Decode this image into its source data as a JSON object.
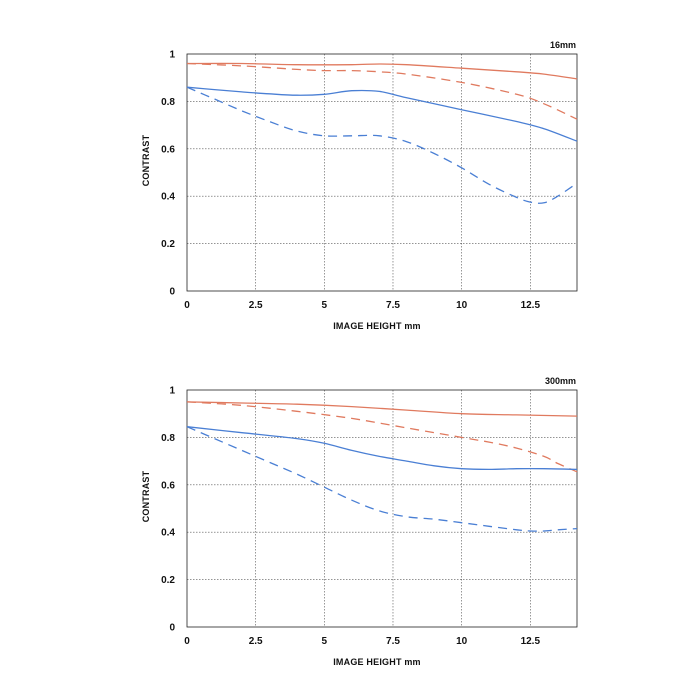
{
  "chart_data": [
    {
      "type": "line",
      "title": "16mm",
      "xlabel": "IMAGE HEIGHT  mm",
      "ylabel": "CONTRAST",
      "xlim": [
        0,
        14.2
      ],
      "ylim": [
        0,
        1
      ],
      "xticks": [
        "0",
        "2.5",
        "5",
        "7.5",
        "10",
        "12.5"
      ],
      "yticks": [
        "0",
        "0.2",
        "0.4",
        "0.6",
        "0.8",
        "1"
      ],
      "grid": true,
      "series": [
        {
          "color": "#e07a5f",
          "style": "solid",
          "x": [
            0,
            2,
            4,
            6,
            7,
            8,
            10,
            12,
            13,
            14.2
          ],
          "y": [
            0.96,
            0.96,
            0.955,
            0.955,
            0.958,
            0.955,
            0.94,
            0.925,
            0.915,
            0.895
          ]
        },
        {
          "color": "#e07a5f",
          "style": "dashed",
          "x": [
            0,
            2,
            4,
            5,
            6,
            7,
            8,
            10,
            12,
            13,
            14.2
          ],
          "y": [
            0.96,
            0.95,
            0.935,
            0.93,
            0.93,
            0.925,
            0.915,
            0.88,
            0.83,
            0.79,
            0.725
          ]
        },
        {
          "color": "#4a7fd4",
          "style": "solid",
          "x": [
            0,
            1,
            2,
            3,
            4,
            5,
            6,
            7,
            8,
            10,
            12,
            13,
            14.2
          ],
          "y": [
            0.86,
            0.85,
            0.84,
            0.832,
            0.826,
            0.83,
            0.845,
            0.842,
            0.815,
            0.765,
            0.715,
            0.685,
            0.632
          ]
        },
        {
          "color": "#4a7fd4",
          "style": "dashed",
          "x": [
            0,
            1,
            2,
            3,
            4,
            5,
            6,
            7,
            8,
            9,
            10,
            11,
            12,
            12.5,
            13,
            13.5,
            14.2
          ],
          "y": [
            0.86,
            0.81,
            0.76,
            0.715,
            0.675,
            0.655,
            0.655,
            0.655,
            0.63,
            0.58,
            0.52,
            0.45,
            0.395,
            0.375,
            0.372,
            0.4,
            0.455
          ]
        }
      ]
    },
    {
      "type": "line",
      "title": "300mm",
      "xlabel": "IMAGE HEIGHT  mm",
      "ylabel": "CONTRAST",
      "xlim": [
        0,
        14.2
      ],
      "ylim": [
        0,
        1
      ],
      "xticks": [
        "0",
        "2.5",
        "5",
        "7.5",
        "10",
        "12.5"
      ],
      "yticks": [
        "0",
        "0.2",
        "0.4",
        "0.6",
        "0.8",
        "1"
      ],
      "grid": true,
      "series": [
        {
          "color": "#e07a5f",
          "style": "solid",
          "x": [
            0,
            2,
            4,
            6,
            8,
            10,
            12,
            14.2
          ],
          "y": [
            0.95,
            0.945,
            0.94,
            0.93,
            0.915,
            0.9,
            0.895,
            0.89
          ]
        },
        {
          "color": "#e07a5f",
          "style": "dashed",
          "x": [
            0,
            2,
            4,
            6,
            8,
            10,
            11,
            12,
            13,
            13.5,
            14.2
          ],
          "y": [
            0.95,
            0.935,
            0.91,
            0.88,
            0.84,
            0.8,
            0.78,
            0.755,
            0.72,
            0.69,
            0.655
          ]
        },
        {
          "color": "#4a7fd4",
          "style": "solid",
          "x": [
            0,
            2,
            4,
            5,
            6,
            7,
            8,
            9,
            10,
            11,
            12,
            13,
            14.2
          ],
          "y": [
            0.845,
            0.82,
            0.795,
            0.775,
            0.745,
            0.72,
            0.7,
            0.68,
            0.668,
            0.665,
            0.668,
            0.668,
            0.665
          ]
        },
        {
          "color": "#4a7fd4",
          "style": "dashed",
          "x": [
            0,
            1,
            2,
            3,
            4,
            5,
            6,
            7,
            8,
            9,
            10,
            11,
            12,
            12.5,
            13,
            13.5,
            14.2
          ],
          "y": [
            0.845,
            0.795,
            0.745,
            0.695,
            0.645,
            0.59,
            0.535,
            0.49,
            0.465,
            0.455,
            0.44,
            0.425,
            0.41,
            0.405,
            0.405,
            0.41,
            0.415
          ]
        }
      ]
    }
  ]
}
